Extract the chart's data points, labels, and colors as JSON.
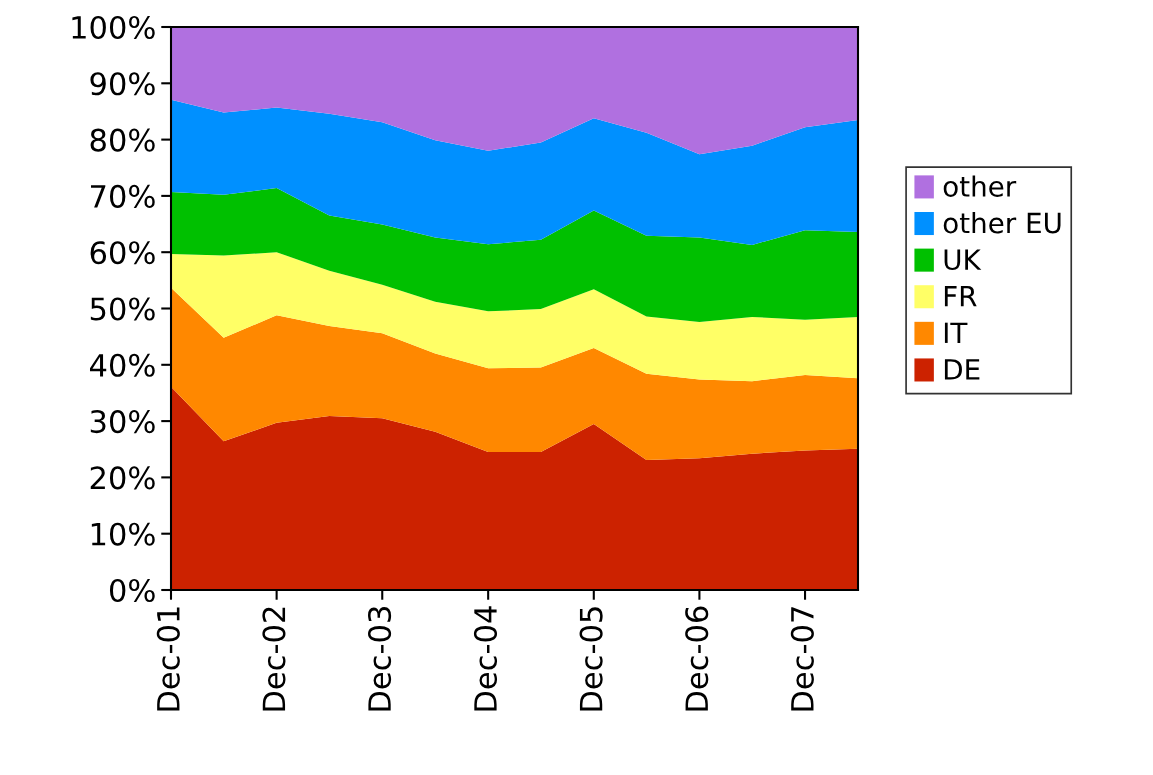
{
  "chart_data": {
    "type": "area",
    "stacked": true,
    "x": [
      "2001-12",
      "2002-06",
      "2002-12",
      "2003-06",
      "2003-12",
      "2004-06",
      "2004-12",
      "2005-06",
      "2005-12",
      "2006-06",
      "2006-12",
      "2007-06",
      "2007-12",
      "2008-06"
    ],
    "series": [
      {
        "name": "DE",
        "color": "#cc2200",
        "values": [
          36.1,
          26.4,
          29.7,
          30.9,
          30.5,
          28.1,
          24.5,
          24.5,
          29.5,
          23.1,
          23.4,
          24.2,
          24.8,
          25.1
        ]
      },
      {
        "name": "IT",
        "color": "#ff8800",
        "values": [
          17.6,
          18.4,
          19.1,
          16.0,
          15.1,
          13.9,
          14.9,
          15.0,
          13.5,
          15.3,
          14.0,
          12.9,
          13.4,
          12.5
        ]
      },
      {
        "name": "FR",
        "color": "#ffff66",
        "values": [
          6.0,
          14.6,
          11.2,
          9.8,
          8.6,
          9.2,
          10.1,
          10.4,
          10.4,
          10.2,
          10.2,
          11.4,
          9.8,
          10.9
        ]
      },
      {
        "name": "UK",
        "color": "#00c000",
        "values": [
          11.0,
          10.8,
          11.4,
          9.8,
          10.7,
          11.4,
          11.9,
          12.3,
          14.0,
          14.3,
          15.0,
          12.8,
          15.9,
          15.1
        ]
      },
      {
        "name": "other EU",
        "color": "#0090ff",
        "values": [
          16.4,
          14.6,
          14.3,
          18.1,
          18.2,
          17.3,
          16.6,
          17.3,
          16.4,
          18.3,
          14.8,
          17.6,
          18.3,
          19.9
        ]
      },
      {
        "name": "other",
        "color": "#b070e0",
        "values": [
          12.9,
          15.2,
          14.3,
          15.4,
          16.9,
          20.1,
          22.0,
          20.5,
          16.2,
          18.8,
          22.6,
          21.1,
          17.8,
          16.5
        ]
      }
    ],
    "xlim": [
      "2001-12",
      "2008-06"
    ],
    "xticks": [
      {
        "value": "2001-12",
        "label": "Dec-01"
      },
      {
        "value": "2002-12",
        "label": "Dec-02"
      },
      {
        "value": "2003-12",
        "label": "Dec-03"
      },
      {
        "value": "2004-12",
        "label": "Dec-04"
      },
      {
        "value": "2005-12",
        "label": "Dec-05"
      },
      {
        "value": "2006-12",
        "label": "Dec-06"
      },
      {
        "value": "2007-12",
        "label": "Dec-07"
      }
    ],
    "ylim": [
      0,
      100
    ],
    "yticks": [
      {
        "value": 0,
        "label": "0%"
      },
      {
        "value": 10,
        "label": "10%"
      },
      {
        "value": 20,
        "label": "20%"
      },
      {
        "value": 30,
        "label": "30%"
      },
      {
        "value": 40,
        "label": "40%"
      },
      {
        "value": 50,
        "label": "50%"
      },
      {
        "value": 60,
        "label": "60%"
      },
      {
        "value": 70,
        "label": "70%"
      },
      {
        "value": 80,
        "label": "80%"
      },
      {
        "value": 90,
        "label": "90%"
      },
      {
        "value": 100,
        "label": "100%"
      }
    ],
    "grid": false,
    "legend": "right"
  }
}
